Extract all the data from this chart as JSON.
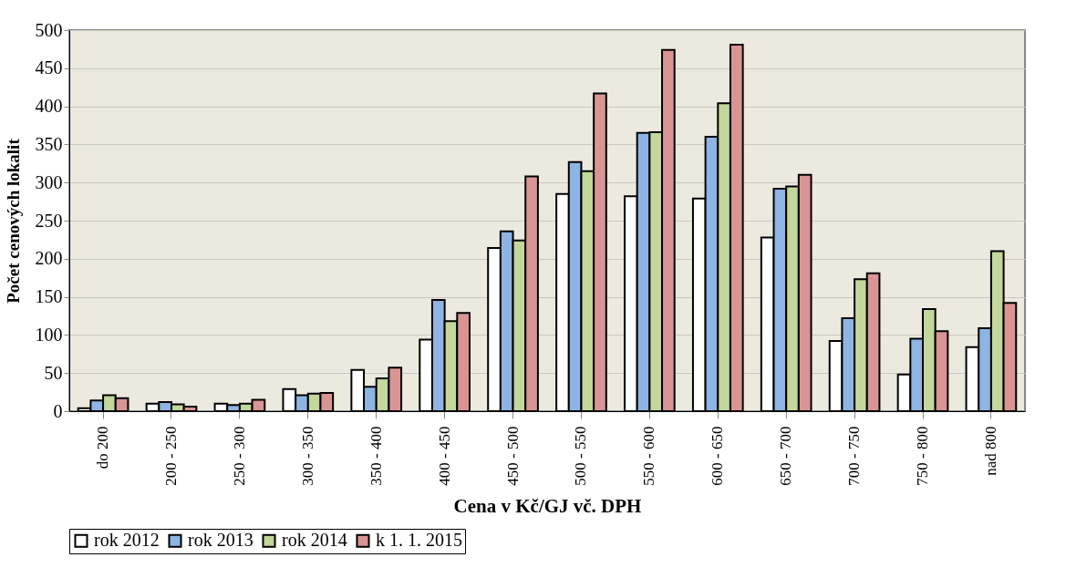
{
  "chart_data": {
    "type": "bar",
    "xlabel": "Cena v Kč/GJ vč. DPH",
    "ylabel": "Počet cenových lokalit",
    "categories": [
      "do 200",
      "200 - 250",
      "250 - 300",
      "300 - 350",
      "350 - 400",
      "400 - 450",
      "450 - 500",
      "500 - 550",
      "550 - 600",
      "600 - 650",
      "650 - 700",
      "700 - 750",
      "750 - 800",
      "nad 800"
    ],
    "series": [
      {
        "name": "rok 2012",
        "color": "#ffffff",
        "values": [
          4,
          10,
          10,
          29,
          54,
          94,
          214,
          285,
          282,
          279,
          228,
          92,
          48,
          84
        ]
      },
      {
        "name": "rok 2013",
        "color": "#8eb4e3",
        "values": [
          14,
          12,
          8,
          21,
          32,
          146,
          236,
          327,
          365,
          360,
          292,
          122,
          95,
          109
        ]
      },
      {
        "name": "rok 2014",
        "color": "#c3d69b",
        "values": [
          21,
          9,
          10,
          23,
          43,
          118,
          224,
          315,
          366,
          404,
          295,
          173,
          134,
          210
        ]
      },
      {
        "name": "k 1. 1. 2015",
        "color": "#d99594",
        "values": [
          17,
          6,
          15,
          24,
          57,
          129,
          308,
          417,
          474,
          481,
          310,
          181,
          105,
          142
        ]
      }
    ],
    "ylim": [
      0,
      500
    ],
    "yticks": [
      0,
      50,
      100,
      150,
      200,
      250,
      300,
      350,
      400,
      450,
      500
    ],
    "grid": "y",
    "legend": "bottom"
  }
}
